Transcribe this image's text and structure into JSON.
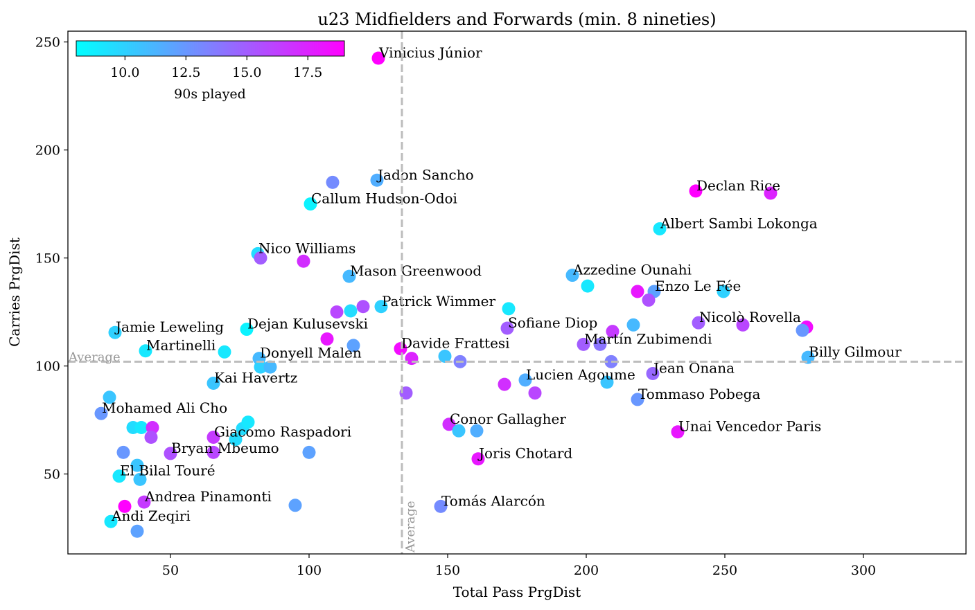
{
  "chart_data": {
    "type": "scatter",
    "title": "u23 Midfielders and Forwards (min. 8 nineties)",
    "xlabel": "Total Pass PrgDist",
    "ylabel": "Carries PrgDist",
    "xlim": [
      13,
      337
    ],
    "ylim": [
      13,
      255
    ],
    "xticks": [
      50,
      100,
      150,
      200,
      250,
      300
    ],
    "yticks": [
      50,
      100,
      150,
      200,
      250
    ],
    "grid": false,
    "average": {
      "x": 133.5,
      "y": 102,
      "label": "Average"
    },
    "colorbar": {
      "label": "90s played",
      "range": [
        8,
        19
      ],
      "ticks": [
        "10.0",
        "12.5",
        "15.0",
        "17.5"
      ],
      "tick_values": [
        10,
        12.5,
        15,
        17.5
      ],
      "colormap": "cool",
      "placement": "top-left"
    },
    "points": [
      {
        "name": "Vinicius Júnior",
        "x": 125,
        "y": 242.5,
        "c": 19.0
      },
      {
        "name": "Jadon Sancho",
        "x": 124.5,
        "y": 186,
        "c": 11.5
      },
      {
        "name": "",
        "x": 108.5,
        "y": 185,
        "c": 13.0
      },
      {
        "name": "Callum Hudson-Odoi",
        "x": 100.5,
        "y": 175,
        "c": 8.5
      },
      {
        "name": "Declan Rice",
        "x": 239.5,
        "y": 181,
        "c": 19.0
      },
      {
        "name": "",
        "x": 266.5,
        "y": 180,
        "c": 17.5
      },
      {
        "name": "Albert Sambi Lokonga",
        "x": 226.5,
        "y": 163.5,
        "c": 9.0
      },
      {
        "name": "Nico Williams",
        "x": 81.5,
        "y": 152,
        "c": 9.5
      },
      {
        "name": "",
        "x": 82.5,
        "y": 150,
        "c": 15.0
      },
      {
        "name": "",
        "x": 98,
        "y": 148.5,
        "c": 17.0
      },
      {
        "name": "Mason Greenwood",
        "x": 114.5,
        "y": 141.5,
        "c": 11.0
      },
      {
        "name": "Azzedine Ounahi",
        "x": 195,
        "y": 142,
        "c": 11.0
      },
      {
        "name": "",
        "x": 200.5,
        "y": 137,
        "c": 9.0
      },
      {
        "name": "Enzo Le Fée",
        "x": 224.5,
        "y": 134.5,
        "c": 12.0
      },
      {
        "name": "",
        "x": 218.5,
        "y": 134.5,
        "c": 18.0
      },
      {
        "name": "",
        "x": 222.5,
        "y": 130.5,
        "c": 15.5
      },
      {
        "name": "",
        "x": 249.5,
        "y": 134.5,
        "c": 10.0
      },
      {
        "name": "Patrick Wimmer",
        "x": 126,
        "y": 127.5,
        "c": 10.0
      },
      {
        "name": "",
        "x": 119.5,
        "y": 127.5,
        "c": 15.5
      },
      {
        "name": "",
        "x": 110,
        "y": 125,
        "c": 16.0
      },
      {
        "name": "",
        "x": 115,
        "y": 125.5,
        "c": 9.5
      },
      {
        "name": "",
        "x": 172,
        "y": 126.5,
        "c": 9.0
      },
      {
        "name": "Sofiane Diop",
        "x": 171.5,
        "y": 117.5,
        "c": 15.0
      },
      {
        "name": "",
        "x": 209.5,
        "y": 116,
        "c": 16.5
      },
      {
        "name": "",
        "x": 217,
        "y": 119,
        "c": 11.0
      },
      {
        "name": "Nicolò Rovella",
        "x": 240.5,
        "y": 120,
        "c": 15.0
      },
      {
        "name": "",
        "x": 256.5,
        "y": 119,
        "c": 16.0
      },
      {
        "name": "",
        "x": 279.5,
        "y": 118,
        "c": 18.5
      },
      {
        "name": "",
        "x": 278,
        "y": 116.5,
        "c": 12.5
      },
      {
        "name": "Jamie Leweling",
        "x": 30,
        "y": 115.5,
        "c": 10.0
      },
      {
        "name": "Dejan Kulusevski",
        "x": 77.5,
        "y": 117,
        "c": 8.5
      },
      {
        "name": "",
        "x": 106.5,
        "y": 112.5,
        "c": 18.0
      },
      {
        "name": "",
        "x": 116,
        "y": 109.5,
        "c": 12.0
      },
      {
        "name": "Davide Frattesi",
        "x": 133,
        "y": 108,
        "c": 18.5
      },
      {
        "name": "Martín Zubimendi",
        "x": 199,
        "y": 110,
        "c": 15.0
      },
      {
        "name": "",
        "x": 205,
        "y": 110,
        "c": 14.0
      },
      {
        "name": "Martinelli",
        "x": 41,
        "y": 107,
        "c": 9.0
      },
      {
        "name": "",
        "x": 69.5,
        "y": 106.5,
        "c": 9.0
      },
      {
        "name": "Donyell Malen",
        "x": 82,
        "y": 103.5,
        "c": 11.0
      },
      {
        "name": "",
        "x": 137,
        "y": 103.5,
        "c": 17.5
      },
      {
        "name": "",
        "x": 149,
        "y": 104.5,
        "c": 10.5
      },
      {
        "name": "",
        "x": 154.5,
        "y": 102,
        "c": 13.5
      },
      {
        "name": "",
        "x": 209,
        "y": 102,
        "c": 13.5
      },
      {
        "name": "Billy Gilmour",
        "x": 280,
        "y": 104,
        "c": 11.0
      },
      {
        "name": "",
        "x": 82.5,
        "y": 99.5,
        "c": 10.0
      },
      {
        "name": "",
        "x": 86,
        "y": 99.5,
        "c": 11.0
      },
      {
        "name": "Jean Onana",
        "x": 224,
        "y": 96.5,
        "c": 14.5
      },
      {
        "name": "Kai Havertz",
        "x": 65.5,
        "y": 92,
        "c": 10.5
      },
      {
        "name": "Lucien Agoume",
        "x": 178,
        "y": 93.5,
        "c": 11.5
      },
      {
        "name": "",
        "x": 170.5,
        "y": 91.5,
        "c": 17.0
      },
      {
        "name": "",
        "x": 207.5,
        "y": 92.5,
        "c": 10.5
      },
      {
        "name": "",
        "x": 135,
        "y": 87.5,
        "c": 15.0
      },
      {
        "name": "",
        "x": 181.5,
        "y": 87.5,
        "c": 16.0
      },
      {
        "name": "Tommaso Pobega",
        "x": 218.5,
        "y": 84.5,
        "c": 12.5
      },
      {
        "name": "",
        "x": 28,
        "y": 85.5,
        "c": 10.5
      },
      {
        "name": "Mohamed Ali Cho",
        "x": 25,
        "y": 78,
        "c": 12.5
      },
      {
        "name": "",
        "x": 36.5,
        "y": 71.5,
        "c": 9.5
      },
      {
        "name": "",
        "x": 39.5,
        "y": 71.5,
        "c": 9.0
      },
      {
        "name": "",
        "x": 43.5,
        "y": 71.5,
        "c": 17.0
      },
      {
        "name": "",
        "x": 43,
        "y": 67,
        "c": 15.5
      },
      {
        "name": "Giacomo Raspadori",
        "x": 65.5,
        "y": 67,
        "c": 16.5
      },
      {
        "name": "",
        "x": 76,
        "y": 71,
        "c": 9.5
      },
      {
        "name": "",
        "x": 78,
        "y": 74,
        "c": 9.0
      },
      {
        "name": "",
        "x": 73.5,
        "y": 66,
        "c": 9.5
      },
      {
        "name": "Conor Gallagher",
        "x": 150.5,
        "y": 73,
        "c": 17.0
      },
      {
        "name": "",
        "x": 154,
        "y": 70,
        "c": 10.5
      },
      {
        "name": "",
        "x": 160.5,
        "y": 70,
        "c": 11.5
      },
      {
        "name": "Unai Vencedor Paris",
        "x": 233,
        "y": 69.5,
        "c": 18.0
      },
      {
        "name": "",
        "x": 33,
        "y": 60,
        "c": 12.5
      },
      {
        "name": "Bryan Mbeumo",
        "x": 50,
        "y": 59.5,
        "c": 15.5
      },
      {
        "name": "",
        "x": 65.5,
        "y": 60,
        "c": 16.0
      },
      {
        "name": "",
        "x": 100,
        "y": 60,
        "c": 12.0
      },
      {
        "name": "Joris Chotard",
        "x": 161,
        "y": 57,
        "c": 18.0
      },
      {
        "name": "",
        "x": 38,
        "y": 54,
        "c": 10.5
      },
      {
        "name": "El Bilal Touré",
        "x": 31.5,
        "y": 49,
        "c": 9.0
      },
      {
        "name": "",
        "x": 39,
        "y": 47.5,
        "c": 10.5
      },
      {
        "name": "Andrea Pinamonti",
        "x": 40.5,
        "y": 37,
        "c": 16.5
      },
      {
        "name": "",
        "x": 33.5,
        "y": 35,
        "c": 19.0
      },
      {
        "name": "",
        "x": 95,
        "y": 35.5,
        "c": 12.0
      },
      {
        "name": "Tomás Alarcón",
        "x": 147.5,
        "y": 35,
        "c": 13.0
      },
      {
        "name": "Andi Zeqiri",
        "x": 28.5,
        "y": 28,
        "c": 9.0
      },
      {
        "name": "",
        "x": 38,
        "y": 23.5,
        "c": 12.0
      }
    ]
  }
}
